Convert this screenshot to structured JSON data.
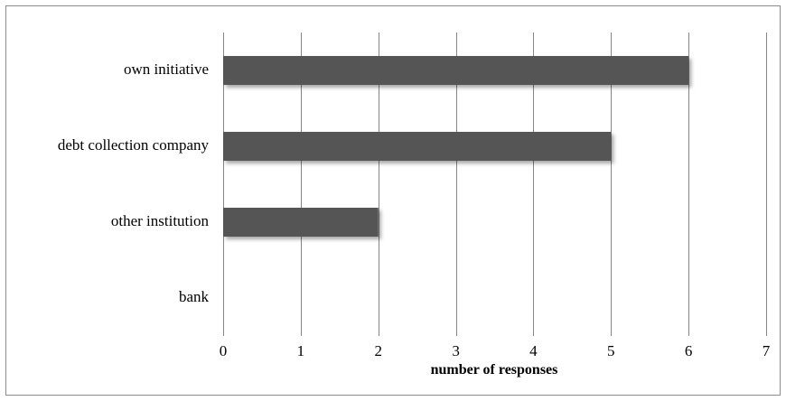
{
  "chart_data": {
    "type": "bar",
    "orientation": "horizontal",
    "categories": [
      "own initiative",
      "debt collection company",
      "other institution",
      "bank"
    ],
    "values": [
      6,
      5,
      2,
      0
    ],
    "xlabel": "number of responses",
    "ylabel": "",
    "xlim": [
      0,
      7
    ],
    "xticks": [
      "0",
      "1",
      "2",
      "3",
      "4",
      "5",
      "6",
      "7"
    ],
    "grid": "vertical",
    "legend": "none",
    "bar_color": "#555555",
    "gridline_color": "#868686"
  }
}
